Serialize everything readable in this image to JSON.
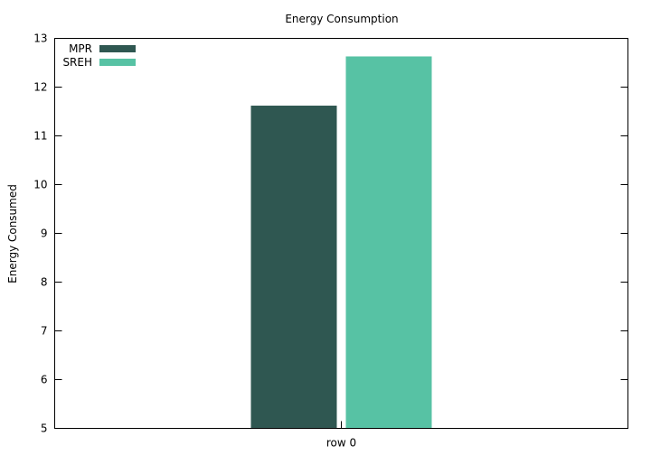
{
  "chart_data": {
    "type": "bar",
    "title": "Energy Consumption",
    "xlabel": "",
    "ylabel": "Energy Consumed",
    "categories": [
      "row 0"
    ],
    "series": [
      {
        "name": "MPR",
        "values": [
          11.62
        ],
        "color": "#2f5751"
      },
      {
        "name": "SREH",
        "values": [
          12.63
        ],
        "color": "#57c2a4"
      }
    ],
    "ylim": [
      5,
      13
    ],
    "yticks": [
      "5",
      "6",
      "7",
      "8",
      "9",
      "10",
      "11",
      "12",
      "13"
    ],
    "grid": false,
    "legend_position": "top-left"
  }
}
